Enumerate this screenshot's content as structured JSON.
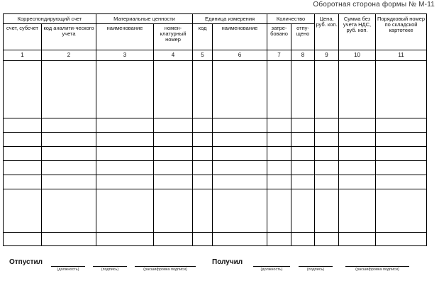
{
  "form_note": "Оборотная сторона формы № М-11",
  "table": {
    "group_headers": {
      "corr_account": "Корреспондирующий счет",
      "materials": "Материальные ценности",
      "unit": "Единица измерения",
      "quantity": "Количество",
      "price": "Цена, руб. коп.",
      "sum": "Сумма без учета НДС, руб. коп.",
      "card_number": "Порядковый номер по складской картотеке"
    },
    "sub_headers": {
      "account_sub": "счет, субсчет",
      "analytic_code": "код аналити-ческого учета",
      "material_name": "наименование",
      "nomenclature_number": "номен-клатурный номер",
      "unit_code": "код",
      "unit_name": "наименование",
      "requested": "затре-бовано",
      "released": "отпу-щено"
    },
    "column_numbers": [
      "1",
      "2",
      "3",
      "4",
      "5",
      "6",
      "7",
      "8",
      "9",
      "10",
      "11"
    ]
  },
  "signatures": {
    "released_by": "Отпустил",
    "received_by": "Получил",
    "hint_position": "(должность)",
    "hint_signature": "(подпись)",
    "hint_decoding": "(расшифровка подписи)"
  }
}
